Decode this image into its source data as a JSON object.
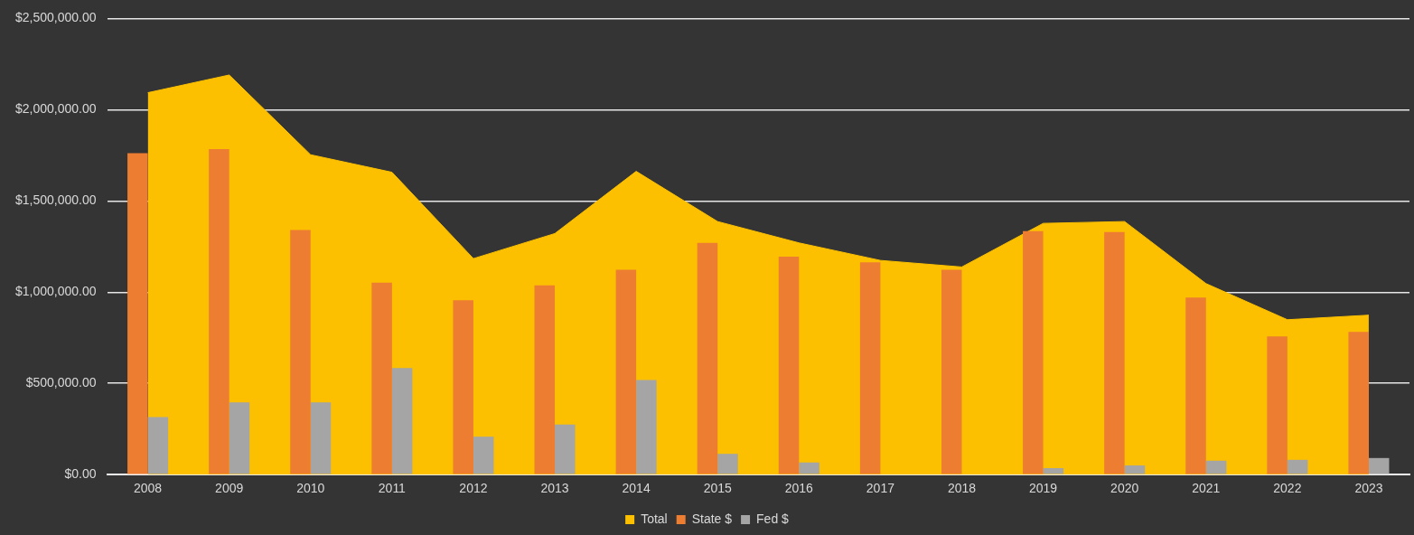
{
  "chart_data": {
    "type": "bar",
    "categories": [
      "2008",
      "2009",
      "2010",
      "2011",
      "2012",
      "2013",
      "2014",
      "2015",
      "2016",
      "2017",
      "2018",
      "2019",
      "2020",
      "2021",
      "2022",
      "2023"
    ],
    "series": [
      {
        "name": "Total",
        "type": "area",
        "color": "#fcc000",
        "values": [
          2093000,
          2190000,
          1753000,
          1657000,
          1184000,
          1321000,
          1662000,
          1387000,
          1270000,
          1174000,
          1138000,
          1377000,
          1387000,
          1047000,
          849000,
          874000
        ]
      },
      {
        "name": "State $",
        "color": "#ed7d31",
        "values": [
          1761000,
          1784000,
          1341000,
          1052000,
          955000,
          1037000,
          1123000,
          1270000,
          1194000,
          1164000,
          1123000,
          1334000,
          1329000,
          970000,
          757000,
          782000
        ]
      },
      {
        "name": "Fed $",
        "color": "#a5a5a5",
        "values": [
          315000,
          396000,
          396000,
          584000,
          208000,
          274000,
          518000,
          114000,
          66000,
          0,
          0,
          36000,
          51000,
          76000,
          81000,
          91000
        ]
      }
    ],
    "ylim": [
      0,
      2500000
    ],
    "yticks": [
      {
        "value": 0,
        "label": "$0.00"
      },
      {
        "value": 500000,
        "label": "$500,000.00"
      },
      {
        "value": 1000000,
        "label": "$1,000,000.00"
      },
      {
        "value": 1500000,
        "label": "$1,500,000.00"
      },
      {
        "value": 2000000,
        "label": "$2,000,000.00"
      },
      {
        "value": 2500000,
        "label": "$2,500,000.00"
      }
    ],
    "grid": "y",
    "legend": "bottom"
  }
}
